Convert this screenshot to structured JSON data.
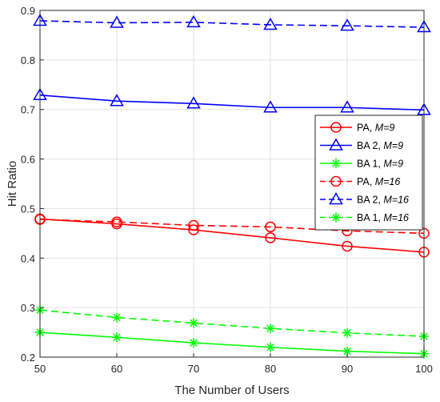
{
  "chart_data": {
    "type": "line",
    "xlabel": "The Number of Users",
    "ylabel": "Hit Ratio",
    "x": [
      50,
      60,
      70,
      80,
      90,
      100
    ],
    "xlim": [
      50,
      100
    ],
    "ylim": [
      0.2,
      0.9
    ],
    "xticks": [
      "50",
      "60",
      "70",
      "80",
      "90",
      "100"
    ],
    "yticks": [
      "0.2",
      "0.3",
      "0.4",
      "0.5",
      "0.6",
      "0.7",
      "0.8",
      "0.9"
    ],
    "grid": true,
    "legend_position": "right",
    "series": [
      {
        "name": "PA, ",
        "name_italic": "M=9",
        "color": "#ff0000",
        "dash": "solid",
        "marker": "circle",
        "values": [
          0.479,
          0.469,
          0.457,
          0.441,
          0.424,
          0.412
        ]
      },
      {
        "name": "BA 2, ",
        "name_italic": "M=9",
        "color": "#0000ff",
        "dash": "solid",
        "marker": "triangle",
        "values": [
          0.729,
          0.717,
          0.712,
          0.704,
          0.704,
          0.699
        ]
      },
      {
        "name": "BA 1, ",
        "name_italic": "M=9",
        "color": "#00ff00",
        "dash": "solid",
        "marker": "star",
        "values": [
          0.25,
          0.24,
          0.229,
          0.22,
          0.212,
          0.207
        ]
      },
      {
        "name": "PA, ",
        "name_italic": "M=16",
        "color": "#ff0000",
        "dash": "dashed",
        "marker": "circle",
        "values": [
          0.478,
          0.473,
          0.466,
          0.463,
          0.455,
          0.45
        ]
      },
      {
        "name": "BA 2,  ",
        "name_italic": "M=16",
        "color": "#0000ff",
        "dash": "dashed",
        "marker": "triangle",
        "values": [
          0.879,
          0.875,
          0.876,
          0.871,
          0.869,
          0.866
        ]
      },
      {
        "name": "BA 1,  ",
        "name_italic": "M=16",
        "color": "#00ff00",
        "dash": "dashed",
        "marker": "star",
        "values": [
          0.295,
          0.28,
          0.269,
          0.258,
          0.249,
          0.242
        ]
      }
    ]
  }
}
